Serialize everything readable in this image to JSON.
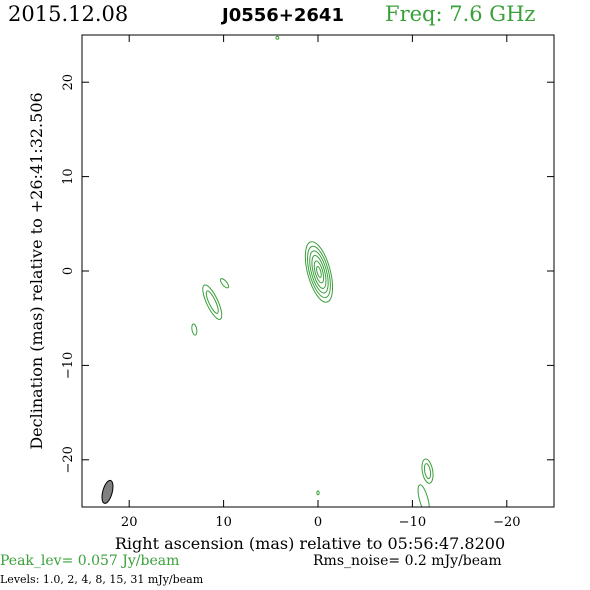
{
  "header": {
    "date": "2015.12.08",
    "source": "J0556+2641",
    "freq": "Freq: 7.6 GHz"
  },
  "footer": {
    "peak": "Peak_lev=  0.057 Jy/beam",
    "rms": "Rms_noise=   0.2 mJy/beam",
    "levels": "Levels: 1.0,    2,    4,    8,   15,   31 mJy/beam"
  },
  "colors": {
    "contour": "#3aa03a",
    "beam": "#808080",
    "frame": "#000000"
  },
  "chart_data": {
    "type": "contour",
    "xlabel": "Right ascension (mas) relative to 05:56:47.8200",
    "ylabel": "Declination (mas) relative to +26:41:32.506",
    "xlim": [
      25,
      -25
    ],
    "ylim": [
      -25,
      25
    ],
    "xticks": [
      20,
      10,
      0,
      -10,
      -20
    ],
    "xtick_labels": [
      "20",
      "10",
      "0",
      "−10",
      "−20"
    ],
    "yticks": [
      -20,
      -10,
      0,
      10,
      20
    ],
    "ytick_labels": [
      "−20",
      "−10",
      "0",
      "10",
      "20"
    ],
    "contour_levels_mJy": [
      1.0,
      2,
      4,
      8,
      15,
      31
    ],
    "components": [
      {
        "name": "core",
        "x": -0.1,
        "y": -0.1,
        "widths": [
          1.2,
          1.0,
          0.8,
          0.6,
          0.4,
          0.2
        ],
        "heights": [
          3.3,
          2.8,
          2.3,
          1.8,
          1.2,
          0.6
        ],
        "pa": -15
      },
      {
        "name": "jet-knot",
        "x": 11.2,
        "y": -3.3,
        "widths": [
          0.6,
          0.35
        ],
        "heights": [
          2.0,
          1.3
        ],
        "pa": -25
      },
      {
        "name": "jet-tail",
        "x": 9.9,
        "y": -1.3,
        "widths": [
          0.25
        ],
        "heights": [
          0.6
        ],
        "pa": -40
      },
      {
        "name": "blob-left",
        "x": 13.1,
        "y": -6.2,
        "widths": [
          0.25
        ],
        "heights": [
          0.6
        ],
        "pa": -10
      },
      {
        "name": "south-knot",
        "x": -11.6,
        "y": -21.2,
        "widths": [
          0.55,
          0.3
        ],
        "heights": [
          1.3,
          0.8
        ],
        "pa": -10
      },
      {
        "name": "south-tail",
        "x": -11.2,
        "y": -24.2,
        "widths": [
          0.45
        ],
        "heights": [
          1.6
        ],
        "pa": -15
      },
      {
        "name": "speck-top",
        "x": 4.3,
        "y": 24.7,
        "widths": [
          0.15
        ],
        "heights": [
          0.15
        ],
        "pa": 0
      },
      {
        "name": "speck-bottom",
        "x": 0.0,
        "y": -23.5,
        "widths": [
          0.12
        ],
        "heights": [
          0.2
        ],
        "pa": 0
      }
    ],
    "beam": {
      "x": 22.3,
      "y": -23.4,
      "major_mas": 2.5,
      "minor_mas": 1.0,
      "pa": 15
    },
    "grid": false
  }
}
